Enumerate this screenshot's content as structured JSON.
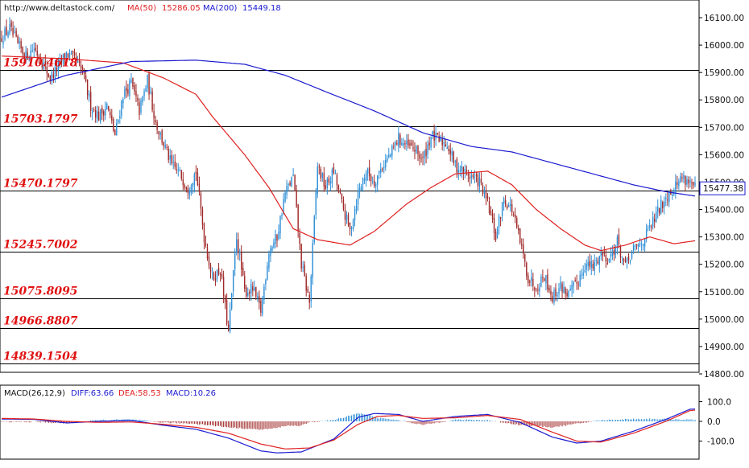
{
  "header": {
    "url": "http://www.deltastock.com/",
    "ma50_label": "MA(50)",
    "ma50_value": "15286.05",
    "ma200_label": "MA(200)",
    "ma200_value": "15449.18",
    "current_price": "15477.38"
  },
  "macd_header": {
    "name": "MACD(26,12,9)",
    "diff": "DIFF:63.66",
    "dea": "DEA:58.53",
    "macd": "MACD:10.26"
  },
  "colors": {
    "bull": "#2e8fd6",
    "bear": "#a02828",
    "ma50": "#e02020",
    "ma200": "#1a1ad0",
    "level_text": "#e01010",
    "diff_line": "#1a1ad0",
    "dea_line": "#e02020"
  },
  "chart_data": [
    {
      "type": "candlestick",
      "y_ticks": [
        "16100.00",
        "16000.00",
        "15900.00",
        "15800.00",
        "15700.00",
        "15600.00",
        "15500.00",
        "15400.00",
        "15300.00",
        "15200.00",
        "15100.00",
        "15000.00",
        "14900.00",
        "14800.00"
      ],
      "ylim": [
        14770,
        16160
      ],
      "levels": [
        {
          "label": "15910.4618",
          "value": 15910.4618
        },
        {
          "label": "15703.1797",
          "value": 15703.1797
        },
        {
          "label": "15470.1797",
          "value": 15470.1797
        },
        {
          "label": "15245.7002",
          "value": 15245.7002
        },
        {
          "label": "15075.8095",
          "value": 15075.8095
        },
        {
          "label": "14966.8807",
          "value": 14966.8807
        },
        {
          "label": "14839.1504",
          "value": 14839.1504
        }
      ],
      "close_anchors": [
        [
          0,
          16030
        ],
        [
          5,
          16060
        ],
        [
          10,
          16000
        ],
        [
          15,
          15960
        ],
        [
          20,
          15990
        ],
        [
          25,
          15940
        ],
        [
          30,
          15880
        ],
        [
          35,
          15920
        ],
        [
          40,
          15970
        ],
        [
          45,
          15945
        ],
        [
          50,
          15900
        ],
        [
          55,
          15780
        ],
        [
          60,
          15740
        ],
        [
          65,
          15780
        ],
        [
          70,
          15670
        ],
        [
          75,
          15820
        ],
        [
          80,
          15860
        ],
        [
          85,
          15760
        ],
        [
          90,
          15870
        ],
        [
          95,
          15720
        ],
        [
          100,
          15640
        ],
        [
          105,
          15560
        ],
        [
          110,
          15530
        ],
        [
          115,
          15480
        ],
        [
          120,
          15540
        ],
        [
          125,
          15300
        ],
        [
          130,
          15150
        ],
        [
          135,
          15180
        ],
        [
          140,
          14950
        ],
        [
          145,
          15300
        ],
        [
          150,
          15100
        ],
        [
          155,
          15110
        ],
        [
          160,
          15030
        ],
        [
          165,
          15250
        ],
        [
          170,
          15300
        ],
        [
          175,
          15460
        ],
        [
          180,
          15520
        ],
        [
          185,
          15200
        ],
        [
          190,
          15060
        ],
        [
          195,
          15560
        ],
        [
          200,
          15480
        ],
        [
          205,
          15540
        ],
        [
          210,
          15420
        ],
        [
          215,
          15320
        ],
        [
          220,
          15460
        ],
        [
          225,
          15540
        ],
        [
          230,
          15500
        ],
        [
          235,
          15560
        ],
        [
          240,
          15600
        ],
        [
          245,
          15660
        ],
        [
          250,
          15630
        ],
        [
          255,
          15620
        ],
        [
          260,
          15580
        ],
        [
          265,
          15670
        ],
        [
          270,
          15650
        ],
        [
          275,
          15640
        ],
        [
          280,
          15560
        ],
        [
          285,
          15540
        ],
        [
          290,
          15520
        ],
        [
          295,
          15500
        ],
        [
          300,
          15420
        ],
        [
          305,
          15300
        ],
        [
          310,
          15440
        ],
        [
          315,
          15400
        ],
        [
          320,
          15280
        ],
        [
          325,
          15150
        ],
        [
          330,
          15120
        ],
        [
          335,
          15160
        ],
        [
          340,
          15080
        ],
        [
          345,
          15120
        ],
        [
          350,
          15090
        ],
        [
          355,
          15130
        ],
        [
          360,
          15200
        ],
        [
          365,
          15190
        ],
        [
          370,
          15240
        ],
        [
          375,
          15220
        ],
        [
          380,
          15280
        ],
        [
          385,
          15190
        ],
        [
          390,
          15250
        ],
        [
          395,
          15280
        ],
        [
          400,
          15330
        ],
        [
          405,
          15390
        ],
        [
          410,
          15450
        ],
        [
          415,
          15480
        ],
        [
          420,
          15520
        ],
        [
          425,
          15500
        ],
        [
          428,
          15477
        ]
      ],
      "ma50": [
        [
          0,
          15960
        ],
        [
          40,
          15950
        ],
        [
          75,
          15935
        ],
        [
          100,
          15880
        ],
        [
          120,
          15820
        ],
        [
          130,
          15740
        ],
        [
          150,
          15600
        ],
        [
          165,
          15480
        ],
        [
          180,
          15330
        ],
        [
          195,
          15290
        ],
        [
          215,
          15270
        ],
        [
          230,
          15320
        ],
        [
          250,
          15420
        ],
        [
          265,
          15480
        ],
        [
          280,
          15530
        ],
        [
          300,
          15540
        ],
        [
          315,
          15490
        ],
        [
          330,
          15400
        ],
        [
          345,
          15330
        ],
        [
          360,
          15270
        ],
        [
          370,
          15250
        ],
        [
          385,
          15270
        ],
        [
          400,
          15300
        ],
        [
          415,
          15275
        ],
        [
          428,
          15286
        ]
      ],
      "ma200": [
        [
          0,
          15810
        ],
        [
          40,
          15890
        ],
        [
          80,
          15940
        ],
        [
          120,
          15945
        ],
        [
          150,
          15930
        ],
        [
          175,
          15890
        ],
        [
          200,
          15830
        ],
        [
          230,
          15760
        ],
        [
          260,
          15680
        ],
        [
          290,
          15630
        ],
        [
          315,
          15610
        ],
        [
          340,
          15570
        ],
        [
          365,
          15530
        ],
        [
          390,
          15490
        ],
        [
          410,
          15465
        ],
        [
          428,
          15449
        ]
      ]
    },
    {
      "type": "bar_line",
      "name": "MACD(26,12,9)",
      "y_ticks": [
        "100.0",
        "0.0",
        "-100.0"
      ],
      "ylim": [
        -190,
        150
      ],
      "diff": [
        [
          0,
          12
        ],
        [
          20,
          10
        ],
        [
          40,
          -8
        ],
        [
          60,
          0
        ],
        [
          80,
          5
        ],
        [
          100,
          -20
        ],
        [
          120,
          -40
        ],
        [
          140,
          -85
        ],
        [
          160,
          -150
        ],
        [
          170,
          -160
        ],
        [
          185,
          -155
        ],
        [
          205,
          -90
        ],
        [
          220,
          20
        ],
        [
          230,
          40
        ],
        [
          245,
          35
        ],
        [
          260,
          0
        ],
        [
          280,
          25
        ],
        [
          300,
          35
        ],
        [
          320,
          -5
        ],
        [
          340,
          -80
        ],
        [
          355,
          -110
        ],
        [
          370,
          -100
        ],
        [
          390,
          -50
        ],
        [
          410,
          10
        ],
        [
          425,
          62
        ],
        [
          430,
          63
        ]
      ],
      "dea": [
        [
          0,
          15
        ],
        [
          20,
          12
        ],
        [
          40,
          0
        ],
        [
          60,
          -5
        ],
        [
          80,
          -3
        ],
        [
          100,
          -15
        ],
        [
          120,
          -30
        ],
        [
          140,
          -60
        ],
        [
          160,
          -115
        ],
        [
          175,
          -140
        ],
        [
          190,
          -135
        ],
        [
          205,
          -95
        ],
        [
          220,
          -15
        ],
        [
          232,
          25
        ],
        [
          245,
          30
        ],
        [
          260,
          15
        ],
        [
          280,
          18
        ],
        [
          300,
          30
        ],
        [
          320,
          10
        ],
        [
          340,
          -55
        ],
        [
          355,
          -100
        ],
        [
          370,
          -105
        ],
        [
          390,
          -60
        ],
        [
          410,
          0
        ],
        [
          425,
          55
        ],
        [
          430,
          58
        ]
      ]
    }
  ]
}
